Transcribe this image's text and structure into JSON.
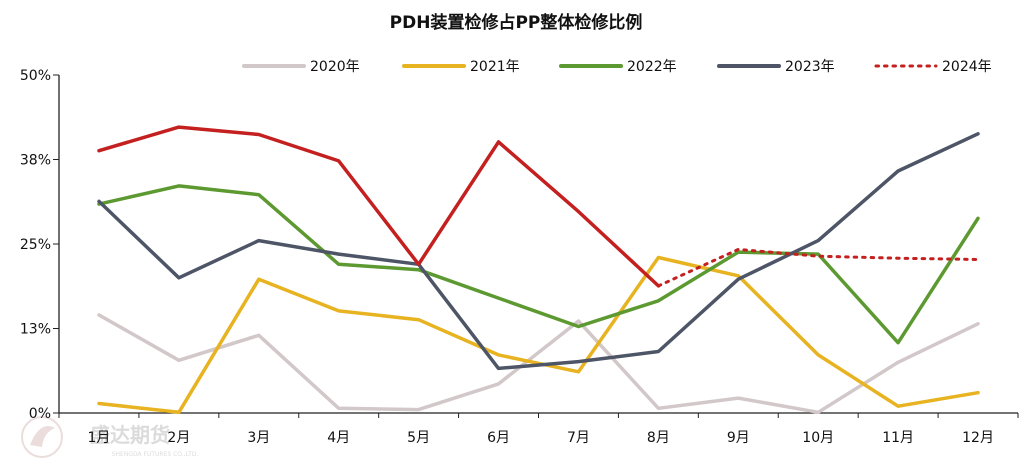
{
  "chart_data": {
    "type": "line",
    "title": "PDH装置检修占PP整体检修比例",
    "xlabel": "",
    "ylabel": "",
    "categories": [
      "1月",
      "2月",
      "3月",
      "4月",
      "5月",
      "6月",
      "7月",
      "8月",
      "9月",
      "10月",
      "11月",
      "12月"
    ],
    "y_ticks": [
      "0%",
      "13%",
      "25%",
      "38%",
      "50%"
    ],
    "ylim": [
      0,
      50
    ],
    "legend_position": "top",
    "grid": false,
    "series": [
      {
        "name": "2020年",
        "color": "#d2c7c9",
        "style": "solid",
        "values": [
          14.5,
          7.8,
          11.5,
          0.7,
          0.5,
          4.3,
          13.6,
          0.7,
          2.2,
          0.1,
          7.5,
          13.2
        ]
      },
      {
        "name": "2021年",
        "color": "#e8b321",
        "style": "solid",
        "values": [
          1.4,
          0.1,
          19.8,
          15.1,
          13.8,
          8.6,
          6.1,
          23.0,
          20.3,
          8.6,
          1.0,
          3.0
        ]
      },
      {
        "name": "2022年",
        "color": "#5d9931",
        "style": "solid",
        "values": [
          30.9,
          33.6,
          32.3,
          22.0,
          21.2,
          17.0,
          12.8,
          16.6,
          23.8,
          23.5,
          10.4,
          28.8
        ]
      },
      {
        "name": "2023年",
        "color": "#4d5566",
        "style": "solid",
        "values": [
          31.3,
          20.0,
          25.5,
          23.5,
          22.0,
          6.6,
          7.6,
          9.1,
          19.8,
          25.5,
          35.8,
          41.3
        ]
      },
      {
        "name": "2024年",
        "color": "#c42020",
        "style": "solid",
        "values": [
          38.8,
          42.3,
          41.2,
          37.3,
          22.0,
          40.1,
          29.8,
          18.8,
          null,
          null,
          null,
          null
        ],
        "projection": {
          "color": "#c42020",
          "style": "dotted",
          "values": [
            null,
            null,
            null,
            null,
            null,
            null,
            null,
            18.8,
            24.2,
            23.2,
            22.9,
            22.7
          ]
        }
      }
    ]
  },
  "watermark": {
    "brand": "盛达期货",
    "sub": "SHENGDA FUTURES CO.,LTD."
  }
}
